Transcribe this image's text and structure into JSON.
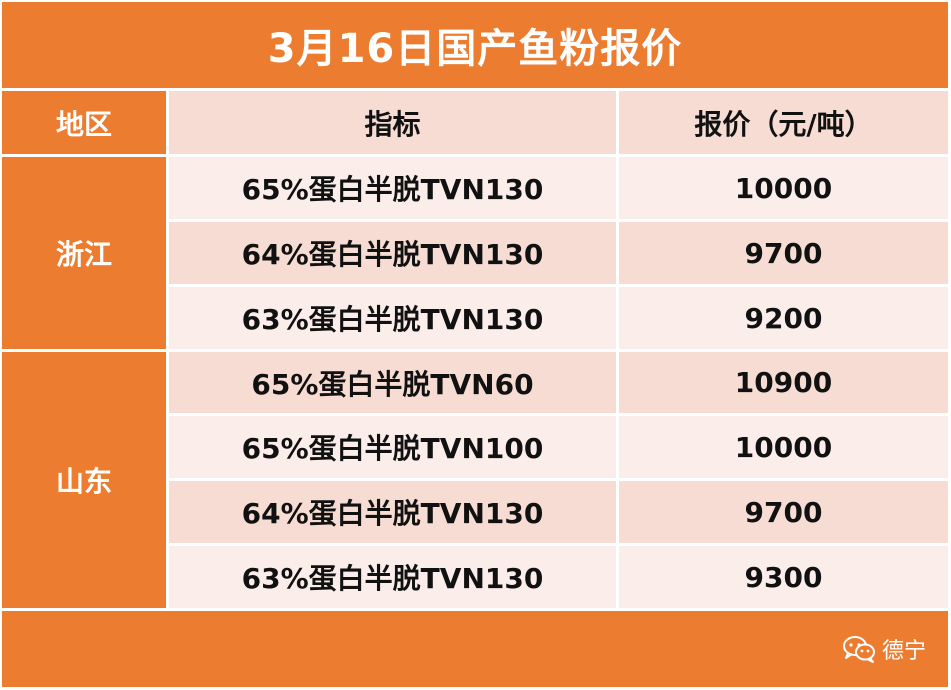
{
  "title": "3月16日国产鱼粉报价",
  "headers": {
    "region": "地区",
    "indicator": "指标",
    "price": "报价（元/吨）"
  },
  "regions": [
    "浙江",
    "山东"
  ],
  "rows": [
    {
      "indicator": "65%蛋白半脱TVN130",
      "price": "10000"
    },
    {
      "indicator": "64%蛋白半脱TVN130",
      "price": "9700"
    },
    {
      "indicator": "63%蛋白半脱TVN130",
      "price": "9200"
    },
    {
      "indicator": "65%蛋白半脱TVN60",
      "price": "10900"
    },
    {
      "indicator": "65%蛋白半脱TVN100",
      "price": "10000"
    },
    {
      "indicator": "64%蛋白半脱TVN130",
      "price": "9700"
    },
    {
      "indicator": "63%蛋白半脱TVN130",
      "price": "9300"
    }
  ],
  "watermark": {
    "icon": "wechat-icon",
    "text": "德宁"
  },
  "colors": {
    "accent": "#ec7c30",
    "row_dark": "#f6dcd3",
    "row_light": "#fbeeea"
  }
}
